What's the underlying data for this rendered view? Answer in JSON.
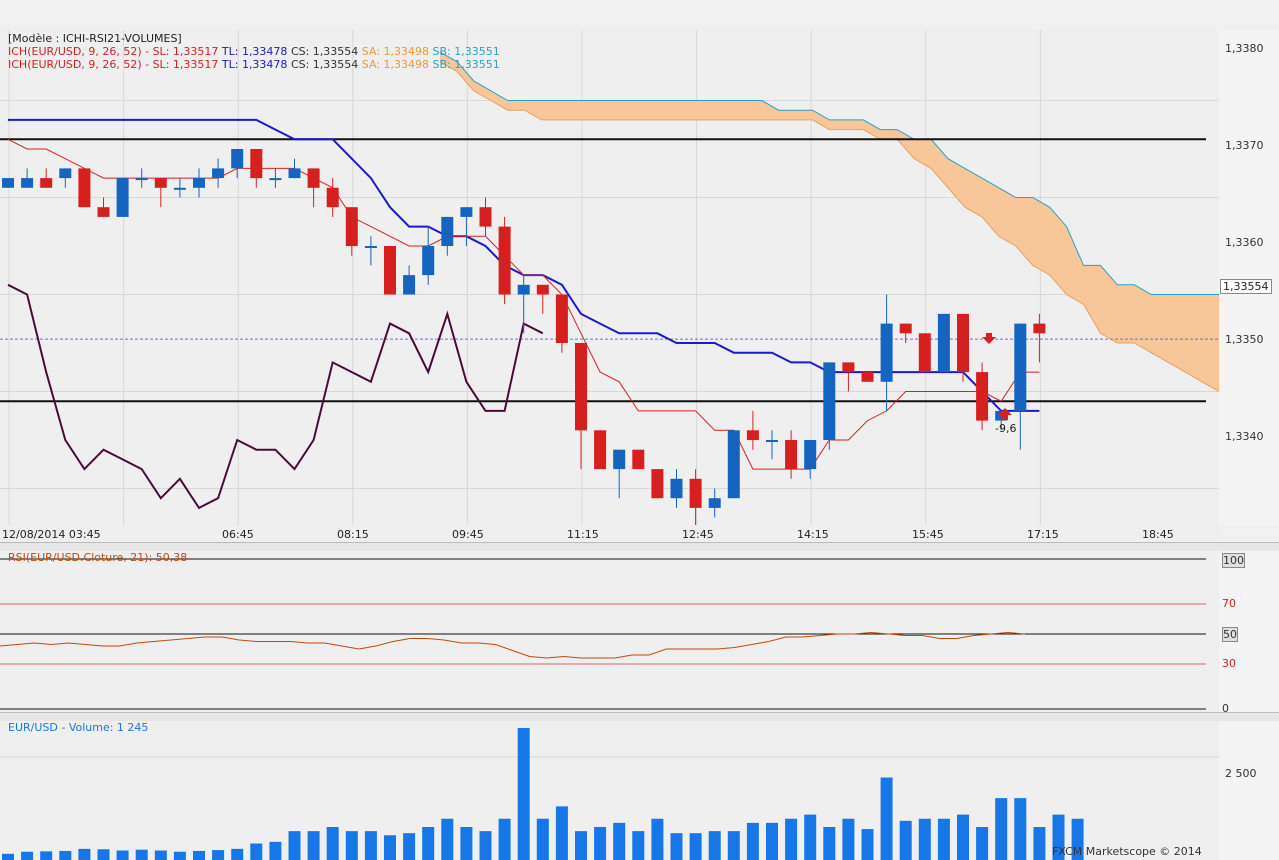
{
  "colors": {
    "bull": "#1565c0",
    "bear": "#d62020",
    "kijun": "#1a1ad0",
    "tenkan": "#d62020",
    "cloud": "#f7c79a",
    "spanb": "#2aa0c8",
    "chikou": "#4a0a3a",
    "rsi": "#c24a0c",
    "volume": "#1877e6",
    "grid": "#d8d8d8"
  },
  "main": {
    "model_label": "[Modèle : ICHI-RSI21-VOLUMES]",
    "legend_lines": [
      {
        "ich": "ICH(EUR/USD, 9, 26, 52) -",
        "sl": "SL: 1,33517",
        "tl": "TL: 1,33478",
        "cs": "CS: 1,33554",
        "sa": "SA: 1,33498",
        "sb": "SB: 1,33551"
      },
      {
        "ich": "ICH(EUR/USD, 9, 26, 52) -",
        "sl": "SL: 1,33517",
        "tl": "TL: 1,33478",
        "cs": "CS: 1,33554",
        "sa": "SA: 1,33498",
        "sb": "SB: 1,33551"
      }
    ],
    "price_axis": [
      "1,3380",
      "1,3370",
      "1,3360",
      "1,3350",
      "1,3340"
    ],
    "current_price": "1,33554",
    "time_axis": [
      "12/08/2014 03:45",
      "06:45",
      "08:15",
      "09:45",
      "11:15",
      "12:45",
      "14:15",
      "15:45",
      "17:15",
      "18:45"
    ],
    "signal_label": "-9,6"
  },
  "rsi": {
    "label": "RSI(EUR/USD.Cloture, 21): 50,38",
    "axis": [
      "100",
      "70",
      "50",
      "30",
      "0"
    ]
  },
  "volume": {
    "label": "EUR/USD - Volume: 1 245",
    "axis": [
      "2 500"
    ],
    "copyright": "FXCM Marketscope © 2014"
  },
  "chart_data": [
    {
      "type": "candlestick",
      "title": "",
      "ylim": [
        1.3331,
        1.3387
      ],
      "series": [
        {
          "name": "candles",
          "ohlc": [
            [
              1.3371,
              1.3372,
              1.3371,
              1.3372
            ],
            [
              1.3371,
              1.3373,
              1.3371,
              1.3372
            ],
            [
              1.3372,
              1.3373,
              1.3371,
              1.3371
            ],
            [
              1.3372,
              1.3373,
              1.3371,
              1.3373
            ],
            [
              1.3373,
              1.3373,
              1.3369,
              1.3369
            ],
            [
              1.3369,
              1.337,
              1.3368,
              1.3368
            ],
            [
              1.3368,
              1.3372,
              1.3368,
              1.3372
            ],
            [
              1.3372,
              1.3373,
              1.3371,
              1.3372
            ],
            [
              1.3372,
              1.3372,
              1.3369,
              1.3371
            ],
            [
              1.3371,
              1.3372,
              1.337,
              1.3371
            ],
            [
              1.3371,
              1.3373,
              1.337,
              1.3372
            ],
            [
              1.3372,
              1.3374,
              1.3371,
              1.3373
            ],
            [
              1.3373,
              1.3375,
              1.3372,
              1.3375
            ],
            [
              1.3375,
              1.3375,
              1.3371,
              1.3372
            ],
            [
              1.3372,
              1.3373,
              1.3371,
              1.3372
            ],
            [
              1.3372,
              1.3374,
              1.3372,
              1.3373
            ],
            [
              1.3373,
              1.3373,
              1.3369,
              1.3371
            ],
            [
              1.3371,
              1.3372,
              1.3368,
              1.3369
            ],
            [
              1.3369,
              1.3369,
              1.3364,
              1.3365
            ],
            [
              1.3365,
              1.3366,
              1.3363,
              1.3365
            ],
            [
              1.3365,
              1.3365,
              1.336,
              1.336
            ],
            [
              1.336,
              1.3363,
              1.336,
              1.3362
            ],
            [
              1.3362,
              1.3367,
              1.3361,
              1.3365
            ],
            [
              1.3365,
              1.3368,
              1.3364,
              1.3368
            ],
            [
              1.3368,
              1.3369,
              1.3365,
              1.3369
            ],
            [
              1.3369,
              1.337,
              1.3366,
              1.3367
            ],
            [
              1.3367,
              1.3368,
              1.3359,
              1.336
            ],
            [
              1.336,
              1.3362,
              1.3356,
              1.3361
            ],
            [
              1.3361,
              1.3361,
              1.3358,
              1.336
            ],
            [
              1.336,
              1.336,
              1.3354,
              1.3355
            ],
            [
              1.3355,
              1.3355,
              1.3342,
              1.3346
            ],
            [
              1.3346,
              1.3346,
              1.3342,
              1.3342
            ],
            [
              1.3342,
              1.3344,
              1.3339,
              1.3344
            ],
            [
              1.3344,
              1.3344,
              1.3342,
              1.3342
            ],
            [
              1.3342,
              1.3342,
              1.3339,
              1.3339
            ],
            [
              1.3339,
              1.3342,
              1.3338,
              1.3341
            ],
            [
              1.3341,
              1.3342,
              1.3335,
              1.3338
            ],
            [
              1.3338,
              1.334,
              1.3337,
              1.3339
            ],
            [
              1.3339,
              1.3346,
              1.3339,
              1.3346
            ],
            [
              1.3346,
              1.3348,
              1.3344,
              1.3345
            ],
            [
              1.3345,
              1.3346,
              1.3343,
              1.3345
            ],
            [
              1.3345,
              1.3346,
              1.3341,
              1.3342
            ],
            [
              1.3342,
              1.3345,
              1.3341,
              1.3345
            ],
            [
              1.3345,
              1.3353,
              1.3344,
              1.3353
            ],
            [
              1.3353,
              1.3353,
              1.335,
              1.3352
            ],
            [
              1.3352,
              1.3352,
              1.3351,
              1.3351
            ],
            [
              1.3351,
              1.336,
              1.3348,
              1.3357
            ],
            [
              1.3357,
              1.3357,
              1.3355,
              1.3356
            ],
            [
              1.3356,
              1.3356,
              1.3352,
              1.3352
            ],
            [
              1.3352,
              1.3358,
              1.3352,
              1.3358
            ],
            [
              1.3358,
              1.3358,
              1.3351,
              1.3352
            ],
            [
              1.3352,
              1.3353,
              1.3346,
              1.3347
            ],
            [
              1.3347,
              1.3348,
              1.3346,
              1.3348
            ],
            [
              1.3348,
              1.3357,
              1.3344,
              1.3357
            ],
            [
              1.3357,
              1.3358,
              1.3353,
              1.3356
            ]
          ]
        },
        {
          "name": "SL",
          "values": [
            1.3378,
            1.3378,
            1.3378,
            1.3378,
            1.3378,
            1.3378,
            1.3378,
            1.3378,
            1.3378,
            1.3378,
            1.3378,
            1.3378,
            1.3378,
            1.3378,
            1.3377,
            1.3376,
            1.3376,
            1.3376,
            1.3374,
            1.3372,
            1.3369,
            1.3367,
            1.3367,
            1.3366,
            1.3366,
            1.3365,
            1.3363,
            1.3362,
            1.3362,
            1.3361,
            1.3358,
            1.3357,
            1.3356,
            1.3356,
            1.3356,
            1.3355,
            1.3355,
            1.3355,
            1.3354,
            1.3354,
            1.3354,
            1.3353,
            1.3353,
            1.3352,
            1.3352,
            1.3352,
            1.3352,
            1.3352,
            1.3352,
            1.3352,
            1.3352,
            1.335,
            1.3348,
            1.3348,
            1.3348
          ]
        },
        {
          "name": "TL",
          "values": [
            1.3376,
            1.3375,
            1.3375,
            1.3374,
            1.3373,
            1.3372,
            1.3372,
            1.3372,
            1.3372,
            1.3372,
            1.3372,
            1.3372,
            1.3373,
            1.3373,
            1.3373,
            1.3373,
            1.3372,
            1.3371,
            1.3368,
            1.3367,
            1.3366,
            1.3365,
            1.3365,
            1.3366,
            1.3366,
            1.3366,
            1.3364,
            1.3362,
            1.3362,
            1.336,
            1.3356,
            1.3352,
            1.3351,
            1.3348,
            1.3348,
            1.3348,
            1.3348,
            1.3346,
            1.3346,
            1.3342,
            1.3342,
            1.3342,
            1.3342,
            1.3345,
            1.3345,
            1.3347,
            1.3348,
            1.335,
            1.335,
            1.335,
            1.335,
            1.335,
            1.3349,
            1.3352,
            1.3352
          ]
        },
        {
          "name": "SA",
          "values": [
            1.3384,
            1.3383,
            1.3381,
            1.338,
            1.3379,
            1.3379,
            1.3378,
            1.3378,
            1.3378,
            1.3378,
            1.3378,
            1.3378,
            1.3378,
            1.3378,
            1.3378,
            1.3378,
            1.3378,
            1.3378,
            1.3378,
            1.3378,
            1.3378,
            1.3378,
            1.3378,
            1.3377,
            1.3377,
            1.3377,
            1.3376,
            1.3376,
            1.3374,
            1.3373,
            1.3371,
            1.3369,
            1.3368,
            1.3366,
            1.3365,
            1.3363,
            1.3362,
            1.336,
            1.3359,
            1.3356,
            1.3355,
            1.3355,
            1.3354,
            1.3353,
            1.3352,
            1.3351,
            1.335
          ]
        },
        {
          "name": "SB",
          "values": [
            1.3385,
            1.3384,
            1.3382,
            1.3381,
            1.338,
            1.338,
            1.338,
            1.338,
            1.338,
            1.338,
            1.338,
            1.338,
            1.338,
            1.338,
            1.338,
            1.338,
            1.338,
            1.338,
            1.338,
            1.338,
            1.3379,
            1.3379,
            1.3379,
            1.3378,
            1.3378,
            1.3378,
            1.3377,
            1.3377,
            1.3376,
            1.3376,
            1.3374,
            1.3373,
            1.3372,
            1.3371,
            1.337,
            1.337,
            1.3369,
            1.3367,
            1.3363,
            1.3363,
            1.3361,
            1.3361,
            1.336,
            1.336,
            1.336,
            1.336,
            1.336
          ]
        },
        {
          "name": "CS",
          "values": [
            1.3361,
            1.336,
            1.3352,
            1.3345,
            1.3342,
            1.3344,
            1.3343,
            1.3342,
            1.3339,
            1.3341,
            1.3338,
            1.3339,
            1.3345,
            1.3344,
            1.3344,
            1.3342,
            1.3345,
            1.3353,
            1.3352,
            1.3351,
            1.3357,
            1.3356,
            1.3352,
            1.3358,
            1.3351,
            1.3348,
            1.3348,
            1.3357,
            1.3356
          ]
        }
      ],
      "hlines": [
        1.3376,
        1.3349
      ]
    },
    {
      "type": "line",
      "title": "",
      "ylim": [
        0,
        100
      ],
      "series": [
        {
          "name": "RSI",
          "values": [
            42,
            43,
            44,
            43,
            44,
            43,
            42,
            42,
            44,
            45,
            46,
            47,
            48,
            48,
            46,
            45,
            45,
            45,
            44,
            44,
            42,
            40,
            42,
            45,
            47,
            47,
            46,
            44,
            44,
            43,
            39,
            35,
            34,
            35,
            34,
            34,
            34,
            36,
            36,
            40,
            40,
            40,
            40,
            41,
            43,
            45,
            48,
            48,
            49,
            50,
            50,
            51,
            50,
            49,
            49,
            47,
            47,
            49,
            50,
            51,
            50
          ]
        }
      ],
      "levels": [
        100,
        70,
        50,
        30,
        0
      ]
    },
    {
      "type": "bar",
      "title": "",
      "ylim": [
        0,
        3200
      ],
      "series": [
        {
          "name": "Volume",
          "values": [
            150,
            200,
            210,
            220,
            270,
            260,
            230,
            250,
            230,
            200,
            220,
            240,
            270,
            400,
            440,
            700,
            700,
            800,
            700,
            700,
            600,
            650,
            800,
            1000,
            800,
            700,
            1000,
            3200,
            1000,
            1300,
            700,
            800,
            900,
            700,
            1000,
            650,
            650,
            700,
            700,
            900,
            900,
            1000,
            1100,
            800,
            1000,
            750,
            2000,
            950,
            1000,
            1000,
            1100,
            800,
            1500,
            1500,
            800,
            1100,
            1000
          ]
        }
      ]
    }
  ]
}
